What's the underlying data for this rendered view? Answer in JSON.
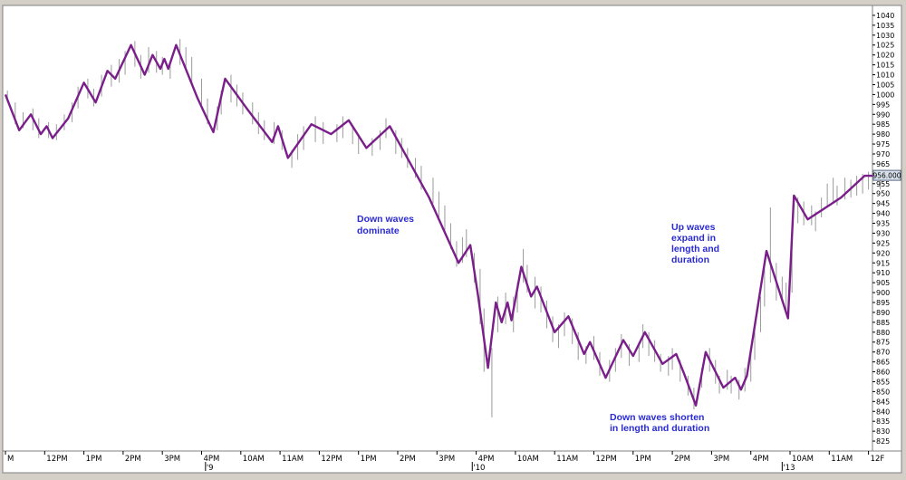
{
  "chart_data": {
    "type": "line",
    "title": "",
    "xlabel": "",
    "ylabel": "",
    "ylim": [
      820,
      1045
    ],
    "y_ticks": [
      825,
      830,
      835,
      840,
      845,
      850,
      855,
      860,
      865,
      870,
      875,
      880,
      885,
      890,
      895,
      900,
      905,
      910,
      915,
      920,
      925,
      930,
      935,
      940,
      945,
      950,
      955,
      960,
      965,
      970,
      975,
      980,
      985,
      990,
      995,
      1000,
      1005,
      1010,
      1015,
      1020,
      1025,
      1030,
      1035,
      1040
    ],
    "y_tick_labels": [
      "825",
      "830",
      "835",
      "840",
      "845",
      "850",
      "855",
      "860",
      "865",
      "870",
      "875",
      "880",
      "885",
      "890",
      "895",
      "900",
      "905",
      "910",
      "915",
      "920",
      "925",
      "930",
      "935",
      "940",
      "945",
      "950",
      "955",
      "960",
      "965",
      "970",
      "975",
      "980",
      "985",
      "990",
      "995",
      "1000",
      "1005",
      "1010",
      "1015",
      "1020",
      "1025",
      "1030",
      "1035",
      "1040"
    ],
    "last_price_label": "956.000",
    "x_ticks": [
      {
        "label": "M",
        "x": 0
      },
      {
        "label": "12PM",
        "x": 1
      },
      {
        "label": "1PM",
        "x": 2
      },
      {
        "label": "2PM",
        "x": 3
      },
      {
        "label": "3PM",
        "x": 4
      },
      {
        "label": "4PM",
        "x": 5
      },
      {
        "label": "10AM",
        "x": 6
      },
      {
        "label": "11AM",
        "x": 7
      },
      {
        "label": "12PM",
        "x": 8
      },
      {
        "label": "1PM",
        "x": 9
      },
      {
        "label": "2PM",
        "x": 10
      },
      {
        "label": "3PM",
        "x": 11
      },
      {
        "label": "4PM",
        "x": 12
      },
      {
        "label": "10AM",
        "x": 13
      },
      {
        "label": "11AM",
        "x": 14
      },
      {
        "label": "12PM",
        "x": 15
      },
      {
        "label": "1PM",
        "x": 16
      },
      {
        "label": "2PM",
        "x": 17
      },
      {
        "label": "3PM",
        "x": 18
      },
      {
        "label": "4PM",
        "x": 19
      },
      {
        "label": "10AM",
        "x": 20
      },
      {
        "label": "11AM",
        "x": 21
      },
      {
        "label": "12F",
        "x": 22
      }
    ],
    "day_labels": [
      {
        "label": "'9",
        "x": 5.1
      },
      {
        "label": "'10",
        "x": 11.9
      },
      {
        "label": "'13",
        "x": 19.8
      }
    ],
    "series": [
      {
        "color": "#7a1f8a",
        "points": [
          [
            0,
            1000
          ],
          [
            0.35,
            982
          ],
          [
            0.65,
            990
          ],
          [
            0.9,
            980
          ],
          [
            1.05,
            984
          ],
          [
            1.2,
            978
          ],
          [
            1.6,
            988
          ],
          [
            2.0,
            1006
          ],
          [
            2.3,
            996
          ],
          [
            2.6,
            1012
          ],
          [
            2.8,
            1008
          ],
          [
            3.2,
            1025
          ],
          [
            3.55,
            1010
          ],
          [
            3.75,
            1020
          ],
          [
            3.95,
            1013
          ],
          [
            4.05,
            1018
          ],
          [
            4.15,
            1013
          ],
          [
            4.35,
            1025
          ],
          [
            4.9,
            998
          ],
          [
            5.3,
            981
          ],
          [
            5.6,
            1008
          ],
          [
            6.15,
            993
          ],
          [
            6.8,
            976
          ],
          [
            6.95,
            984
          ],
          [
            7.2,
            968
          ],
          [
            7.8,
            985
          ],
          [
            8.3,
            980
          ],
          [
            8.75,
            987
          ],
          [
            9.2,
            973
          ],
          [
            9.8,
            984
          ],
          [
            10.8,
            948
          ],
          [
            11.55,
            915
          ],
          [
            11.85,
            924
          ],
          [
            12.05,
            898
          ],
          [
            12.3,
            862
          ],
          [
            12.5,
            895
          ],
          [
            12.65,
            885
          ],
          [
            12.8,
            895
          ],
          [
            12.9,
            886
          ],
          [
            13.15,
            913
          ],
          [
            13.4,
            898
          ],
          [
            13.55,
            903
          ],
          [
            14.0,
            880
          ],
          [
            14.35,
            888
          ],
          [
            14.75,
            869
          ],
          [
            14.9,
            875
          ],
          [
            15.3,
            857
          ],
          [
            15.75,
            876
          ],
          [
            16.0,
            868
          ],
          [
            16.3,
            880
          ],
          [
            16.75,
            864
          ],
          [
            17.1,
            869
          ],
          [
            17.3,
            859
          ],
          [
            17.6,
            843
          ],
          [
            17.85,
            870
          ],
          [
            18.3,
            852
          ],
          [
            18.6,
            857
          ],
          [
            18.75,
            851
          ],
          [
            18.9,
            858
          ],
          [
            19.4,
            921
          ],
          [
            19.95,
            887
          ],
          [
            20.1,
            949
          ],
          [
            20.45,
            937
          ],
          [
            21.3,
            948
          ],
          [
            21.9,
            959
          ],
          [
            22.2,
            959
          ]
        ]
      }
    ],
    "bars": [
      [
        0.05,
        1002,
        996
      ],
      [
        0.25,
        996,
        985
      ],
      [
        0.45,
        991,
        983
      ],
      [
        0.7,
        993,
        982
      ],
      [
        0.85,
        988,
        978
      ],
      [
        1.1,
        986,
        978
      ],
      [
        1.3,
        985,
        977
      ],
      [
        1.5,
        990,
        982
      ],
      [
        1.7,
        996,
        986
      ],
      [
        1.85,
        1004,
        993
      ],
      [
        2.1,
        1008,
        998
      ],
      [
        2.25,
        1003,
        994
      ],
      [
        2.45,
        1010,
        999
      ],
      [
        2.7,
        1015,
        1004
      ],
      [
        2.9,
        1018,
        1006
      ],
      [
        3.05,
        1022,
        1010
      ],
      [
        3.3,
        1027,
        1014
      ],
      [
        3.45,
        1020,
        1008
      ],
      [
        3.65,
        1024,
        1011
      ],
      [
        3.85,
        1022,
        1011
      ],
      [
        4.0,
        1019,
        1010
      ],
      [
        4.2,
        1017,
        1008
      ],
      [
        4.45,
        1028,
        1015
      ],
      [
        4.6,
        1024,
        1012
      ],
      [
        4.75,
        1019,
        1005
      ],
      [
        5.0,
        1008,
        995
      ],
      [
        5.15,
        998,
        985
      ],
      [
        5.4,
        994,
        982
      ],
      [
        5.5,
        1002,
        990
      ],
      [
        5.75,
        1010,
        996
      ],
      [
        5.9,
        1005,
        994
      ],
      [
        6.05,
        1001,
        990
      ],
      [
        6.3,
        996,
        985
      ],
      [
        6.45,
        991,
        980
      ],
      [
        6.6,
        987,
        977
      ],
      [
        6.85,
        986,
        975
      ],
      [
        7.05,
        982,
        972
      ],
      [
        7.3,
        972,
        963
      ],
      [
        7.45,
        980,
        967
      ],
      [
        7.6,
        984,
        972
      ],
      [
        7.9,
        989,
        976
      ],
      [
        8.1,
        986,
        975
      ],
      [
        8.45,
        985,
        976
      ],
      [
        8.6,
        989,
        978
      ],
      [
        8.85,
        984,
        975
      ],
      [
        9.0,
        979,
        970
      ],
      [
        9.35,
        978,
        969
      ],
      [
        9.55,
        982,
        972
      ],
      [
        9.7,
        988,
        978
      ],
      [
        9.95,
        982,
        970
      ],
      [
        10.1,
        978,
        968
      ],
      [
        10.25,
        973,
        963
      ],
      [
        10.45,
        968,
        958
      ],
      [
        10.6,
        964,
        952
      ],
      [
        10.9,
        958,
        945
      ],
      [
        11.05,
        951,
        938
      ],
      [
        11.2,
        944,
        930
      ],
      [
        11.35,
        935,
        922
      ],
      [
        11.5,
        926,
        913
      ],
      [
        11.65,
        928,
        915
      ],
      [
        11.75,
        932,
        918
      ],
      [
        11.95,
        920,
        905
      ],
      [
        12.1,
        912,
        884
      ],
      [
        12.2,
        892,
        860
      ],
      [
        12.4,
        872,
        837
      ],
      [
        12.55,
        898,
        880
      ],
      [
        12.75,
        900,
        884
      ],
      [
        12.95,
        898,
        880
      ],
      [
        13.05,
        905,
        890
      ],
      [
        13.2,
        922,
        905
      ],
      [
        13.3,
        914,
        900
      ],
      [
        13.5,
        908,
        892
      ],
      [
        13.65,
        903,
        890
      ],
      [
        13.8,
        896,
        882
      ],
      [
        13.95,
        888,
        875
      ],
      [
        14.1,
        884,
        872
      ],
      [
        14.25,
        890,
        878
      ],
      [
        14.45,
        887,
        874
      ],
      [
        14.6,
        880,
        866
      ],
      [
        14.8,
        873,
        864
      ],
      [
        15.0,
        878,
        866
      ],
      [
        15.15,
        870,
        858
      ],
      [
        15.4,
        866,
        855
      ],
      [
        15.55,
        872,
        860
      ],
      [
        15.7,
        879,
        867
      ],
      [
        15.9,
        874,
        863
      ],
      [
        16.15,
        875,
        865
      ],
      [
        16.25,
        884,
        872
      ],
      [
        16.4,
        880,
        868
      ],
      [
        16.55,
        876,
        865
      ],
      [
        16.7,
        869,
        860
      ],
      [
        16.9,
        868,
        858
      ],
      [
        17.0,
        872,
        861
      ],
      [
        17.2,
        866,
        855
      ],
      [
        17.4,
        858,
        848
      ],
      [
        17.55,
        852,
        841
      ],
      [
        17.75,
        862,
        852
      ],
      [
        17.95,
        872,
        860
      ],
      [
        18.1,
        866,
        854
      ],
      [
        18.2,
        858,
        849
      ],
      [
        18.4,
        861,
        851
      ],
      [
        18.5,
        858,
        849
      ],
      [
        18.7,
        856,
        846
      ],
      [
        18.85,
        862,
        850
      ],
      [
        19.0,
        872,
        855
      ],
      [
        19.1,
        885,
        866
      ],
      [
        19.25,
        898,
        880
      ],
      [
        19.35,
        912,
        893
      ],
      [
        19.5,
        943,
        905
      ],
      [
        19.65,
        915,
        896
      ],
      [
        19.8,
        908,
        895
      ],
      [
        19.9,
        905,
        890
      ],
      [
        20.05,
        925,
        900
      ],
      [
        20.2,
        948,
        935
      ],
      [
        20.35,
        946,
        934
      ],
      [
        20.55,
        944,
        934
      ],
      [
        20.65,
        941,
        931
      ],
      [
        20.8,
        948,
        938
      ],
      [
        20.95,
        955,
        943
      ],
      [
        21.1,
        958,
        946
      ],
      [
        21.2,
        954,
        944
      ],
      [
        21.4,
        958,
        947
      ],
      [
        21.55,
        957,
        948
      ],
      [
        21.7,
        959,
        949
      ],
      [
        21.85,
        960,
        950
      ],
      [
        22.0,
        961,
        952
      ],
      [
        22.1,
        960,
        952
      ],
      [
        22.3,
        958,
        952
      ]
    ],
    "annotations": [
      {
        "lines": [
          "Down waves",
          "dominate"
        ]
      },
      {
        "lines": [
          "Up waves",
          "expand in",
          "length and",
          "duration"
        ]
      },
      {
        "lines": [
          "Down waves shorten",
          "in length and duration"
        ]
      }
    ]
  }
}
